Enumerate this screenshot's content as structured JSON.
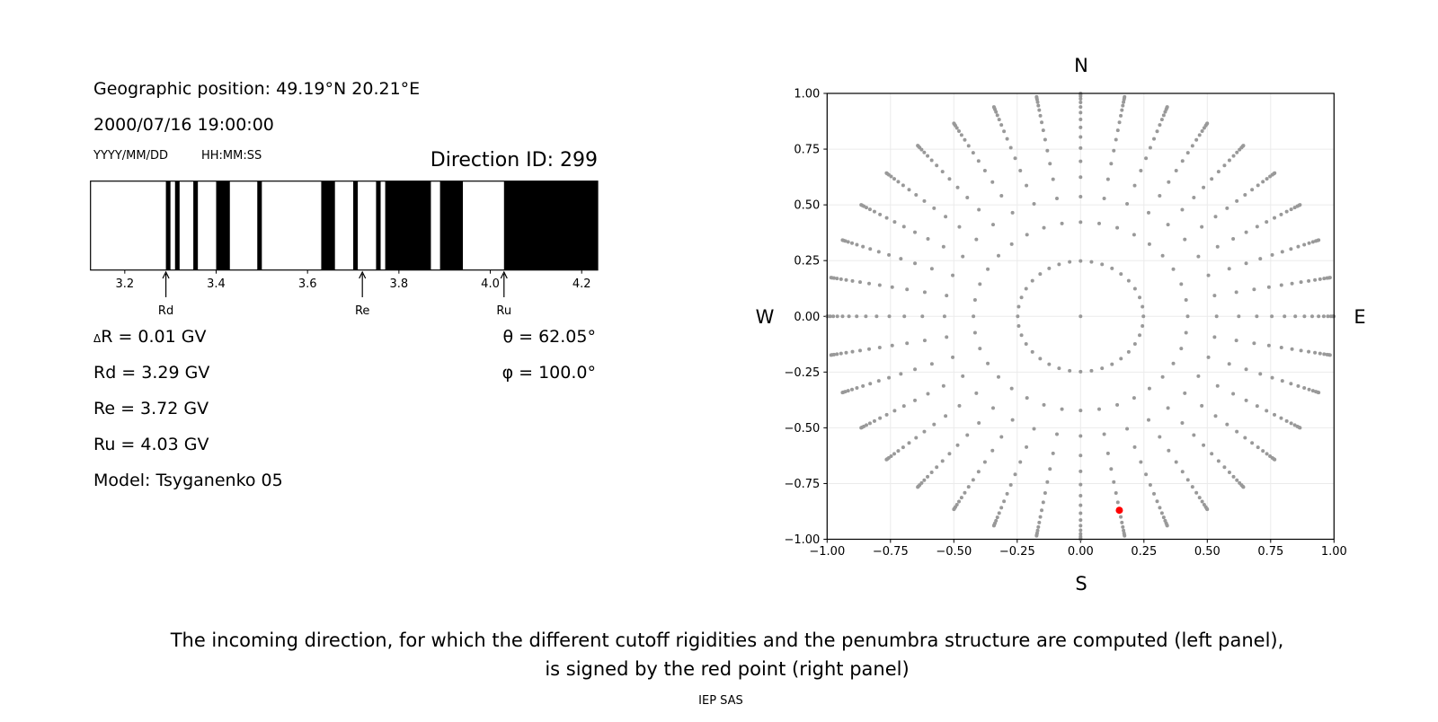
{
  "header": {
    "geo_position": "Geographic position: 49.19°N 20.21°E",
    "datetime": "2000/07/16 19:00:00",
    "date_format": "YYYY/MM/DD",
    "time_format": "HH:MM:SS",
    "direction_id": "Direction ID: 299"
  },
  "params": {
    "delta_r_symbol": "Δ",
    "delta_r": "R = 0.01 GV",
    "rd": "Rd = 3.29 GV",
    "re": "Re = 3.72 GV",
    "ru": "Ru = 4.03 GV",
    "model": "Model: Tsyganenko 05",
    "theta": "θ = 62.05°",
    "phi": "φ = 100.0°"
  },
  "caption": {
    "line1": "The incoming direction, for which the different cutoff rigidities and the penumbra structure are computed (left panel),",
    "line2": "is signed by the red point (right panel)",
    "credit": "IEP SAS"
  },
  "chart_data": [
    {
      "type": "bar",
      "subtype": "penumbra-strip",
      "xlim": [
        3.125,
        4.235
      ],
      "x_ticks": [
        3.2,
        3.4,
        3.6,
        3.8,
        4.0,
        4.2
      ],
      "x_tick_labels": [
        "3.2",
        "3.4",
        "3.6",
        "3.8",
        "4.0",
        "4.2"
      ],
      "black_bands": [
        [
          3.29,
          3.3
        ],
        [
          3.31,
          3.32
        ],
        [
          3.35,
          3.36
        ],
        [
          3.4,
          3.43
        ],
        [
          3.49,
          3.5
        ],
        [
          3.63,
          3.66
        ],
        [
          3.7,
          3.71
        ],
        [
          3.75,
          3.76
        ],
        [
          3.77,
          3.87
        ],
        [
          3.89,
          3.94
        ],
        [
          4.03,
          4.235
        ]
      ],
      "band_color": "#000000",
      "markers": [
        {
          "label": "Rd",
          "value": 3.29
        },
        {
          "label": "Re",
          "value": 3.72
        },
        {
          "label": "Ru",
          "value": 4.03
        }
      ]
    },
    {
      "type": "scatter",
      "xlim": [
        -1,
        1
      ],
      "ylim": [
        -1,
        1
      ],
      "grid": true,
      "x_tick_labels": [
        "−1.00",
        "−0.75",
        "−0.50",
        "−0.25",
        "0.00",
        "0.25",
        "0.50",
        "0.75",
        "1.00"
      ],
      "y_tick_labels": [
        "−1.00",
        "−0.75",
        "−0.50",
        "−0.25",
        "0.00",
        "0.25",
        "0.50",
        "0.75",
        "1.00"
      ],
      "ticks": [
        -1,
        -0.75,
        -0.5,
        -0.25,
        0,
        0.25,
        0.5,
        0.75,
        1
      ],
      "compass": {
        "north": "N",
        "south": "S",
        "west": "W",
        "east": "E"
      },
      "direction_grid": {
        "azimuths_deg_from_north": [
          0,
          10,
          20,
          30,
          40,
          50,
          60,
          70,
          80,
          90,
          100,
          110,
          120,
          130,
          140,
          150,
          160,
          170,
          180,
          190,
          200,
          210,
          220,
          230,
          240,
          250,
          260,
          270,
          280,
          290,
          300,
          310,
          320,
          330,
          340,
          350
        ],
        "ring_radii": [
          0.248,
          0.4227,
          0.5368,
          0.6242,
          0.6953,
          0.7546,
          0.8047,
          0.8472,
          0.8833,
          0.9138,
          0.9391,
          0.9596,
          0.9758,
          0.9877,
          0.9956,
          0.9995
        ],
        "center_point": [
          0,
          0
        ],
        "color": "#999999"
      },
      "selected_point": {
        "x": 0.153,
        "y": -0.87,
        "color": "#ff0000"
      }
    }
  ]
}
